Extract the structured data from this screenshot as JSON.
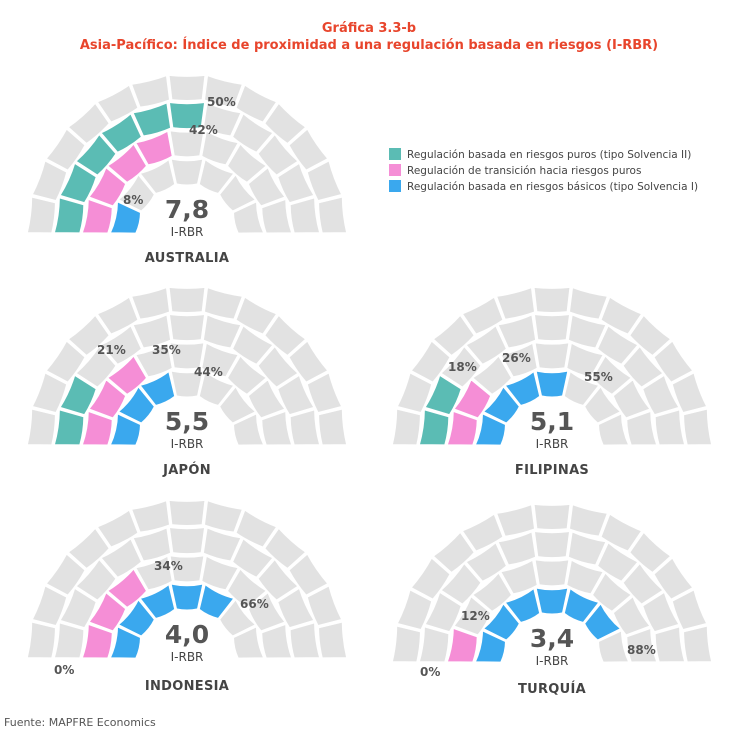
{
  "header": {
    "figure_number": "Gráfica 3.3-b",
    "title": "Asia-Pacífico: Índice de proximidad a una regulación basada en riesgos (I-RBR)"
  },
  "colors": {
    "pure": "#5bbcb4",
    "transition": "#f58ed6",
    "basic": "#3aa8ee",
    "empty": "#e2e2e2",
    "title": "#e8452c"
  },
  "chart_data": {
    "type": "gauge",
    "title": "Asia-Pacífico: Índice de proximidad a una regulación basada en riesgos (I-RBR)",
    "unit_label": "I-RBR",
    "segments_per_ring": [
      7,
      9,
      11,
      13
    ],
    "legend": [
      {
        "key": "pure",
        "label": "Regulación basada en riesgos puros (tipo Solvencia II)"
      },
      {
        "key": "transition",
        "label": "Regulación de transición hacia riesgos puros"
      },
      {
        "key": "basic",
        "label": "Regulación basada en riesgos básicos (tipo Solvencia I)"
      }
    ],
    "gauges": [
      {
        "country": "AUSTRALIA",
        "value": "7,8",
        "index": 7.8,
        "basic": 8,
        "transition": 42,
        "pure": 50,
        "labels": {
          "basic": "8%",
          "transition": "42%",
          "pure": "50%"
        }
      },
      {
        "country": "JAPÓN",
        "value": "5,5",
        "index": 5.5,
        "basic": 44,
        "transition": 35,
        "pure": 21,
        "labels": {
          "basic": "44%",
          "transition": "35%",
          "pure": "21%"
        }
      },
      {
        "country": "FILIPINAS",
        "value": "5,1",
        "index": 5.1,
        "basic": 55,
        "transition": 26,
        "pure": 18,
        "labels": {
          "basic": "55%",
          "transition": "26%",
          "pure": "18%"
        }
      },
      {
        "country": "INDONESIA",
        "value": "4,0",
        "index": 4.0,
        "basic": 66,
        "transition": 34,
        "pure": 0,
        "labels": {
          "basic": "66%",
          "transition": "34%",
          "pure": "0%"
        }
      },
      {
        "country": "TURQUÍA",
        "value": "3,4",
        "index": 3.4,
        "basic": 88,
        "transition": 12,
        "pure": 0,
        "labels": {
          "basic": "88%",
          "transition": "12%",
          "pure": "0%"
        }
      }
    ]
  },
  "footer": {
    "source": "Fuente: MAPFRE Economics"
  }
}
